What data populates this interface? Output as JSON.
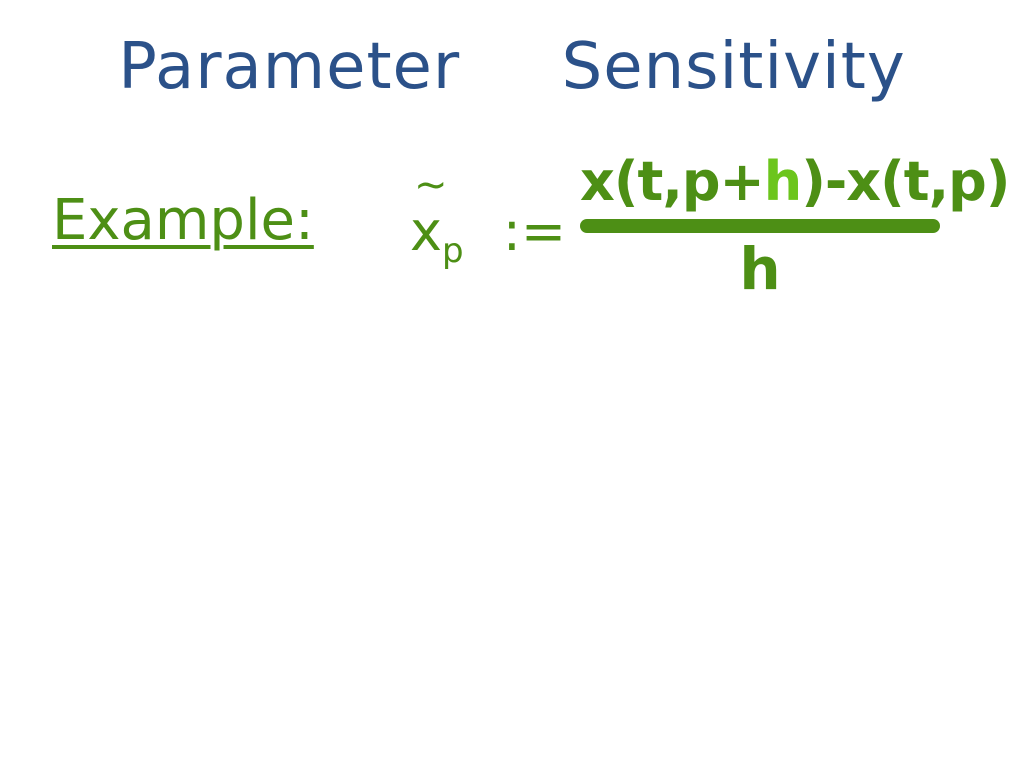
{
  "title": {
    "word1": "Parameter",
    "word2": "Sensitivity"
  },
  "example_label": "Example:",
  "formula": {
    "lhs_symbol": "x",
    "lhs_tilde": "~",
    "lhs_subscript": "p",
    "define_operator": ":=",
    "numerator_part1": "x(t,p+",
    "numerator_highlight": "h",
    "numerator_part2": ")-x(t,p)",
    "denominator": "h"
  },
  "colors": {
    "title": "#2b5189",
    "ink_green": "#4d8f15",
    "highlight_green": "#6cc51d",
    "background": "#ffffff"
  }
}
